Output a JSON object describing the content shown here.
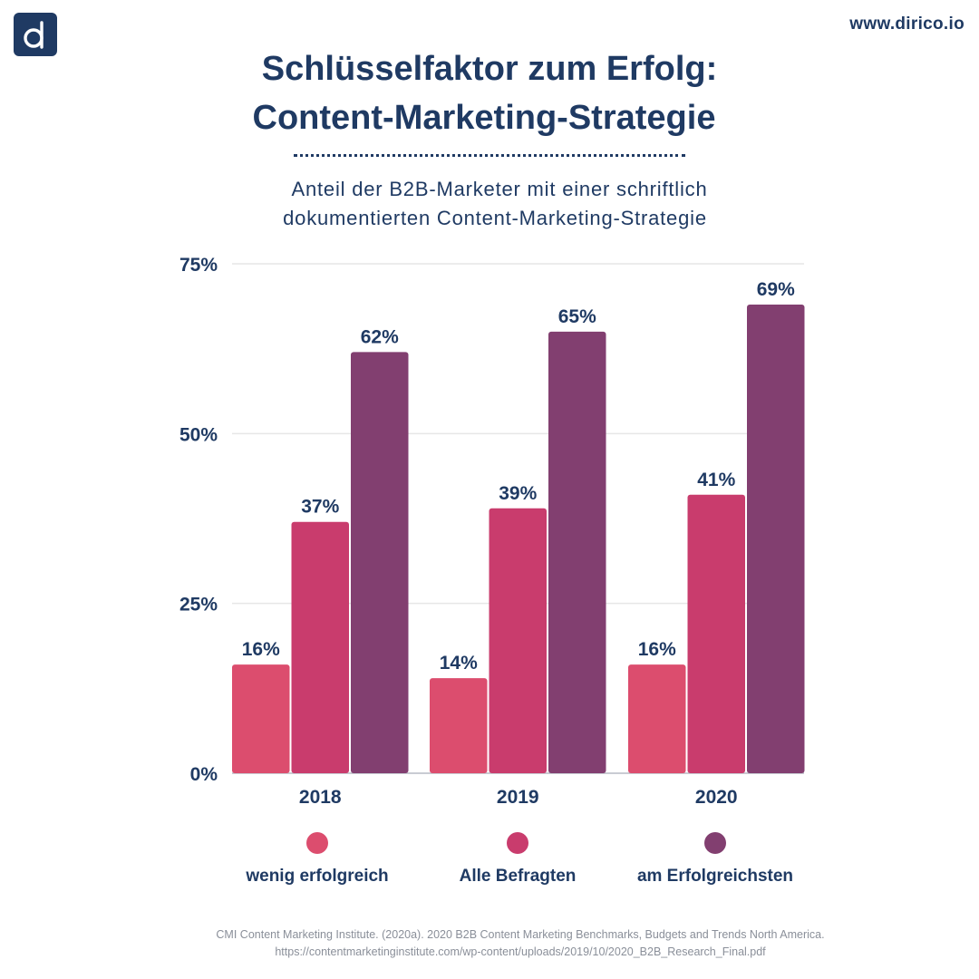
{
  "header": {
    "logo_letter": "d",
    "site_url": "www.dirico.io"
  },
  "title": {
    "line1": "Schlüsselfaktor zum Erfolg:",
    "line2": "Content-Marketing-Strategie"
  },
  "subtitle": {
    "line1": "Anteil der B2B-Marketer mit einer schriftlich",
    "line2": "dokumentierten Content-Marketing-Strategie"
  },
  "colors": {
    "text": "#1f3a63",
    "wenig_erfolgreich": "#dc4d6e",
    "alle_befragten": "#c93c6d",
    "am_erfolgreichsten": "#823f70",
    "grid": "#e6e6e6"
  },
  "chart_data": {
    "type": "bar",
    "categories": [
      "2018",
      "2019",
      "2020"
    ],
    "series": [
      {
        "name": "wenig erfolgreich",
        "values": [
          16,
          14,
          16
        ],
        "labels": [
          "16%",
          "14%",
          "16%"
        ],
        "color": "#dc4d6e"
      },
      {
        "name": "Alle Befragten",
        "values": [
          37,
          39,
          41
        ],
        "labels": [
          "37%",
          "39%",
          "41%"
        ],
        "color": "#c93c6d"
      },
      {
        "name": "am Erfolgreichsten",
        "values": [
          62,
          65,
          69
        ],
        "labels": [
          "62%",
          "65%",
          "69%"
        ],
        "color": "#823f70"
      }
    ],
    "y_ticks": [
      0,
      25,
      50,
      75
    ],
    "y_tick_labels": [
      "0%",
      "25%",
      "50%",
      "75%"
    ],
    "ylim": [
      0,
      75
    ],
    "grid": true,
    "legend_position": "bottom"
  },
  "legend": [
    {
      "label": "wenig erfolgreich",
      "color": "#dc4d6e"
    },
    {
      "label": "Alle Befragten",
      "color": "#c93c6d"
    },
    {
      "label": "am Erfolgreichsten",
      "color": "#823f70"
    }
  ],
  "source": {
    "line1": "CMI Content Marketing Institute. (2020a). 2020 B2B Content Marketing Benchmarks, Budgets and Trends North America.",
    "line2": "https://contentmarketinginstitute.com/wp-content/uploads/2019/10/2020_B2B_Research_Final.pdf"
  }
}
